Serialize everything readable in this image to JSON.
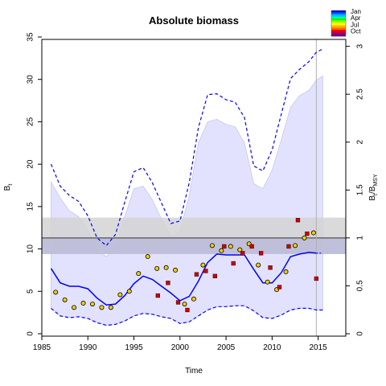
{
  "chart_data": {
    "type": "line",
    "title": "Absolute biomass",
    "xlabel": "Time",
    "ylabel": "B",
    "ylabel_sub": "t",
    "y2label": "B",
    "y2label_sub1": "t",
    "y2label_mid": "/B",
    "y2label_sub2": "MSY",
    "xlim": [
      1985,
      2018
    ],
    "ylim": [
      0,
      35
    ],
    "y2lim": [
      0,
      3
    ],
    "x_ticks": [
      1985,
      1990,
      1995,
      2000,
      2005,
      2010,
      2015
    ],
    "y_ticks": [
      0,
      5,
      10,
      15,
      20,
      25,
      30,
      35
    ],
    "y2_ticks": [
      0,
      0.5,
      1,
      1.5,
      2,
      2.5,
      3
    ],
    "y2_tick_labels": [
      "0",
      "0.5",
      "1",
      "1.5",
      "2",
      "2.5",
      "3"
    ],
    "grid": false,
    "bmsy": {
      "estimate": 11.3,
      "ci_lower_light": 9.4,
      "ci_upper_light": 13.7,
      "ci_lower_dark": 9.4,
      "ci_upper_dark": 11.3
    },
    "vertical_line_year": 2014.8,
    "estimate": {
      "x": [
        1986,
        1987,
        1988,
        1989,
        1990,
        1991,
        1992,
        1993,
        1994,
        1995,
        1996,
        1997,
        1998,
        1999,
        2000,
        2001,
        2002,
        2003,
        2004,
        2005,
        2006,
        2007,
        2008,
        2009,
        2010,
        2011,
        2012,
        2013,
        2014,
        2014.8
      ],
      "y": [
        7.7,
        6.0,
        5.6,
        5.6,
        5.3,
        4.2,
        3.4,
        3.5,
        4.5,
        5.9,
        6.8,
        6.4,
        5.6,
        4.8,
        3.9,
        4.4,
        6.2,
        8.4,
        9.4,
        9.3,
        9.3,
        9.3,
        7.6,
        6.0,
        6.0,
        7.2,
        9.1,
        9.4,
        9.6,
        9.5
      ]
    },
    "prediction": {
      "x": [
        2014.8,
        2015.5
      ],
      "y": [
        9.5,
        9.5
      ]
    },
    "ci_upper": {
      "x": [
        1986,
        1987,
        1988,
        1989,
        1990,
        1991,
        1992,
        1993,
        1994,
        1995,
        1996,
        1997,
        1998,
        1999,
        2000,
        2001,
        2002,
        2003,
        2004,
        2005,
        2006,
        2007,
        2008,
        2009,
        2010,
        2011,
        2012,
        2013,
        2014,
        2014.8,
        2015.5
      ],
      "y": [
        20.0,
        17.4,
        16.3,
        15.6,
        13.9,
        11.3,
        10.4,
        11.7,
        15.5,
        19.1,
        19.6,
        17.8,
        15.4,
        13.0,
        13.3,
        17.8,
        24.3,
        28.2,
        28.3,
        27.6,
        27.3,
        25.5,
        19.8,
        19.2,
        21.7,
        25.9,
        30.1,
        31.2,
        32.1,
        33.2,
        33.6
      ]
    },
    "ci_lower": {
      "x": [
        1986,
        1987,
        1988,
        1989,
        1990,
        1991,
        1992,
        1993,
        1994,
        1995,
        1996,
        1997,
        1998,
        1999,
        2000,
        2001,
        2002,
        2003,
        2004,
        2005,
        2006,
        2007,
        2008,
        2009,
        2010,
        2011,
        2012,
        2013,
        2014,
        2014.8,
        2015.5
      ],
      "y": [
        3.0,
        2.1,
        1.9,
        2.0,
        1.8,
        1.3,
        1.0,
        1.1,
        1.5,
        2.1,
        2.4,
        2.3,
        2.0,
        1.8,
        1.2,
        1.4,
        2.1,
        2.8,
        3.2,
        3.2,
        3.3,
        3.3,
        2.7,
        1.9,
        1.8,
        2.2,
        2.8,
        3.0,
        3.0,
        2.8,
        2.8
      ]
    },
    "band_upper": {
      "x": [
        1986,
        1987,
        1988,
        1989,
        1990,
        1991,
        1992,
        1993,
        1994,
        1995,
        1996,
        1997,
        1998,
        1999,
        2000,
        2001,
        2002,
        2003,
        2004,
        2005,
        2006,
        2007,
        2008,
        2009,
        2010,
        2011,
        2012,
        2013,
        2014,
        2014.8,
        2015.5
      ],
      "y": [
        17.9,
        16.0,
        14.5,
        13.8,
        12.1,
        9.9,
        9.1,
        10.3,
        13.8,
        17.1,
        17.4,
        15.8,
        13.5,
        11.4,
        12.0,
        16.3,
        22.5,
        25.0,
        25.3,
        24.7,
        24.4,
        22.5,
        17.7,
        17.1,
        19.3,
        22.9,
        26.7,
        28.1,
        28.7,
        29.9,
        30.4
      ]
    },
    "observations": [
      {
        "x": 1986.5,
        "y": 4.9,
        "marker": "circle",
        "color": "#F0D000"
      },
      {
        "x": 1987.5,
        "y": 4.0,
        "marker": "circle",
        "color": "#F0D000"
      },
      {
        "x": 1988.5,
        "y": 3.1,
        "marker": "circle",
        "color": "#F0D000"
      },
      {
        "x": 1989.5,
        "y": 3.6,
        "marker": "circle",
        "color": "#F0D000"
      },
      {
        "x": 1990.5,
        "y": 3.5,
        "marker": "circle",
        "color": "#F0D000"
      },
      {
        "x": 1991.5,
        "y": 3.1,
        "marker": "circle",
        "color": "#F0D000"
      },
      {
        "x": 1992.5,
        "y": 3.1,
        "marker": "circle",
        "color": "#F0D000"
      },
      {
        "x": 1993.5,
        "y": 4.6,
        "marker": "circle",
        "color": "#F0D000"
      },
      {
        "x": 1994.5,
        "y": 5.0,
        "marker": "circle",
        "color": "#F0D000"
      },
      {
        "x": 1995.5,
        "y": 7.1,
        "marker": "circle",
        "color": "#F0D000"
      },
      {
        "x": 1996.5,
        "y": 9.1,
        "marker": "circle",
        "color": "#F0D000"
      },
      {
        "x": 1997.5,
        "y": 7.7,
        "marker": "circle",
        "color": "#F0D000"
      },
      {
        "x": 1998.5,
        "y": 7.8,
        "marker": "circle",
        "color": "#F0D000"
      },
      {
        "x": 1999.5,
        "y": 7.5,
        "marker": "circle",
        "color": "#F0D000"
      },
      {
        "x": 2000.5,
        "y": 3.5,
        "marker": "circle",
        "color": "#F0D000"
      },
      {
        "x": 2001.5,
        "y": 4.1,
        "marker": "circle",
        "color": "#F0D000"
      },
      {
        "x": 2002.5,
        "y": 8.1,
        "marker": "circle",
        "color": "#F0D000"
      },
      {
        "x": 2003.5,
        "y": 10.4,
        "marker": "circle",
        "color": "#F0D000"
      },
      {
        "x": 2004.5,
        "y": 9.8,
        "marker": "circle",
        "color": "#F0D000"
      },
      {
        "x": 2005.5,
        "y": 10.3,
        "marker": "circle",
        "color": "#F0D000"
      },
      {
        "x": 2006.5,
        "y": 9.9,
        "marker": "circle",
        "color": "#F0D000"
      },
      {
        "x": 2007.5,
        "y": 10.6,
        "marker": "circle",
        "color": "#F0D000"
      },
      {
        "x": 2008.5,
        "y": 8.1,
        "marker": "circle",
        "color": "#F0D000"
      },
      {
        "x": 2009.5,
        "y": 6.1,
        "marker": "circle",
        "color": "#F0D000"
      },
      {
        "x": 2010.5,
        "y": 5.2,
        "marker": "circle",
        "color": "#F0D000"
      },
      {
        "x": 2011.5,
        "y": 7.3,
        "marker": "circle",
        "color": "#F0D000"
      },
      {
        "x": 2012.5,
        "y": 10.4,
        "marker": "circle",
        "color": "#F0D000"
      },
      {
        "x": 2013.5,
        "y": 11.3,
        "marker": "circle",
        "color": "#F0D000"
      },
      {
        "x": 2014.5,
        "y": 11.9,
        "marker": "circle",
        "color": "#F0D000"
      },
      {
        "x": 1997.6,
        "y": 4.5,
        "marker": "square",
        "color": "#CC0000"
      },
      {
        "x": 1998.7,
        "y": 6.0,
        "marker": "square",
        "color": "#CC0000"
      },
      {
        "x": 1999.8,
        "y": 3.7,
        "marker": "square",
        "color": "#CC0000"
      },
      {
        "x": 2000.8,
        "y": 2.8,
        "marker": "square",
        "color": "#CC0000"
      },
      {
        "x": 2001.8,
        "y": 7.0,
        "marker": "square",
        "color": "#CC0000"
      },
      {
        "x": 2002.8,
        "y": 7.4,
        "marker": "square",
        "color": "#CC0000"
      },
      {
        "x": 2003.8,
        "y": 6.8,
        "marker": "square",
        "color": "#CC0000"
      },
      {
        "x": 2004.8,
        "y": 10.3,
        "marker": "square",
        "color": "#CC0000"
      },
      {
        "x": 2005.8,
        "y": 8.3,
        "marker": "square",
        "color": "#CC0000"
      },
      {
        "x": 2006.8,
        "y": 9.5,
        "marker": "square",
        "color": "#CC0000"
      },
      {
        "x": 2007.8,
        "y": 10.3,
        "marker": "square",
        "color": "#CC0000"
      },
      {
        "x": 2008.8,
        "y": 9.5,
        "marker": "square",
        "color": "#CC0000"
      },
      {
        "x": 2009.8,
        "y": 7.8,
        "marker": "square",
        "color": "#CC0000"
      },
      {
        "x": 2010.8,
        "y": 5.5,
        "marker": "square",
        "color": "#CC0000"
      },
      {
        "x": 2011.8,
        "y": 10.3,
        "marker": "square",
        "color": "#CC0000"
      },
      {
        "x": 2012.8,
        "y": 13.4,
        "marker": "square",
        "color": "#CC0000"
      },
      {
        "x": 2013.8,
        "y": 11.8,
        "marker": "square",
        "color": "#CC0000"
      },
      {
        "x": 2014.8,
        "y": 6.5,
        "marker": "square",
        "color": "#CC0000"
      }
    ],
    "legend": {
      "placement": "top-right",
      "labels": [
        "Jan",
        "Apr",
        "Jul",
        "Oct"
      ],
      "colors": [
        "#0000CC",
        "#0044FF",
        "#0099FF",
        "#00CCFF",
        "#00FF99",
        "#00FF00",
        "#66FF00",
        "#CCFF00",
        "#FFFF00",
        "#FFCC00",
        "#FF9900",
        "#FF6600",
        "#FF0000",
        "#CC0033",
        "#990066",
        "#660099"
      ]
    },
    "colors": {
      "estimate": "#0000FF",
      "ci": "#0000FF",
      "band_fill": "#E2E2FF",
      "bmsy_light": "#D3D3D3",
      "bmsy_dark": "#BCBCD9",
      "bmsy_line": "#666666",
      "vline": "#B0B0B0"
    }
  }
}
